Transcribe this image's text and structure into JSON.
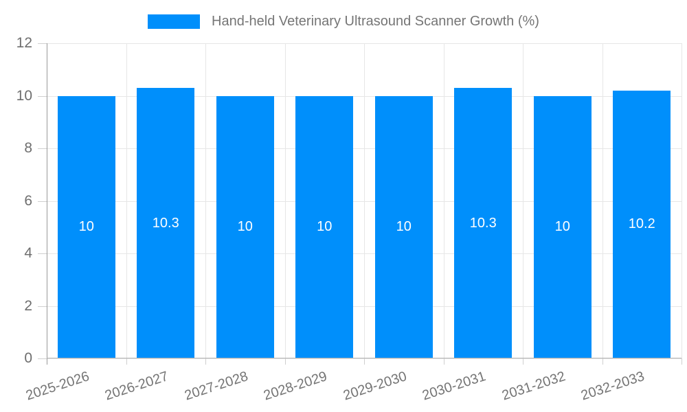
{
  "legend": {
    "label": "Hand-held Veterinary Ultrasound Scanner Growth (%)"
  },
  "chart_data": {
    "type": "bar",
    "title": "Hand-held Veterinary Ultrasound Scanner Growth (%)",
    "categories": [
      "2025-2026",
      "2026-2027",
      "2027-2028",
      "2028-2029",
      "2029-2030",
      "2030-2031",
      "2031-2032",
      "2032-2033"
    ],
    "series": [
      {
        "name": "Hand-held Veterinary Ultrasound Scanner Growth (%)",
        "values": [
          10,
          10.3,
          10,
          10,
          10,
          10.3,
          10,
          10.2
        ],
        "color": "#008FFB"
      }
    ],
    "data_labels": [
      "10",
      "10.3",
      "10",
      "10",
      "10",
      "10.3",
      "10",
      "10.2"
    ],
    "xlabel": "",
    "ylabel": "",
    "ylim": [
      0,
      12
    ],
    "yticks": [
      0,
      2,
      4,
      6,
      8,
      10,
      12
    ],
    "grid": "on",
    "legend_position": "top",
    "bar_label_color": "#ffffff",
    "axis_text_color": "#757575"
  }
}
